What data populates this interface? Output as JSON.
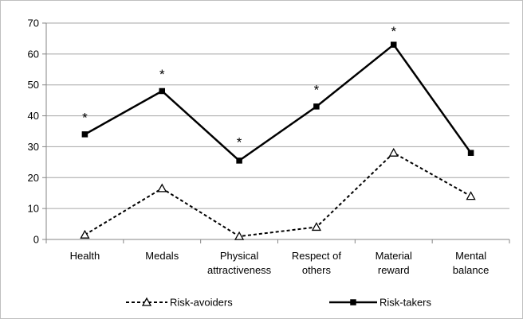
{
  "chart_data": {
    "type": "line",
    "categories": [
      [
        "Health"
      ],
      [
        "Medals"
      ],
      [
        "Physical",
        "attractiveness"
      ],
      [
        "Respect of",
        "others"
      ],
      [
        "Material",
        "reward"
      ],
      [
        "Mental",
        "balance"
      ]
    ],
    "ylim": [
      0,
      70
    ],
    "yticks": [
      "0",
      "10",
      "20",
      "30",
      "40",
      "50",
      "60",
      "70"
    ],
    "grid": true,
    "legend_position": "bottom",
    "series": [
      {
        "name": "Risk-avoiders",
        "values": [
          1.5,
          16.5,
          1,
          4,
          28,
          14
        ],
        "line_style": "dashed",
        "marker": "triangle-open",
        "color": "#000000"
      },
      {
        "name": "Risk-takers",
        "values": [
          34,
          48,
          25.5,
          43,
          63,
          28
        ],
        "line_style": "solid",
        "marker": "square-filled",
        "color": "#000000"
      }
    ],
    "annotations": [
      {
        "category_index": 0,
        "text": "*",
        "y": 40
      },
      {
        "category_index": 1,
        "text": "*",
        "y": 54
      },
      {
        "category_index": 2,
        "text": "*",
        "y": 32
      },
      {
        "category_index": 3,
        "text": "*",
        "y": 49
      },
      {
        "category_index": 4,
        "text": "*",
        "y": 68
      }
    ]
  }
}
